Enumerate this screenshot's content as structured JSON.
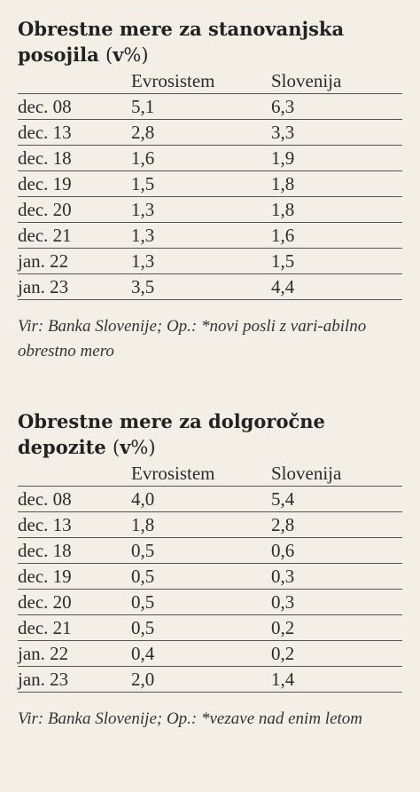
{
  "table1": {
    "title": "Obrestne mere za stanovanjska posojila",
    "unit_v": "v",
    "unit_pct": "%",
    "columns": [
      "",
      "Evrosistem",
      "Slovenija"
    ],
    "rows": [
      {
        "date": "dec. 08",
        "evro": "5,1",
        "slo": "6,3"
      },
      {
        "date": "dec. 13",
        "evro": "2,8",
        "slo": "3,3"
      },
      {
        "date": "dec. 18",
        "evro": "1,6",
        "slo": "1,9"
      },
      {
        "date": "dec. 19",
        "evro": "1,5",
        "slo": "1,8"
      },
      {
        "date": "dec. 20",
        "evro": "1,3",
        "slo": "1,8"
      },
      {
        "date": "dec. 21",
        "evro": "1,3",
        "slo": "1,6"
      },
      {
        "date": "jan. 22",
        "evro": "1,3",
        "slo": "1,5"
      },
      {
        "date": "jan. 23",
        "evro": "3,5",
        "slo": "4,4"
      }
    ],
    "note": "Vir: Banka Slovenije; Op.: *novi posli z vari-abilno obrestno mero"
  },
  "table2": {
    "title": "Obrestne mere za dolgoročne depozite",
    "unit_v": "v",
    "unit_pct": "%",
    "columns": [
      "",
      "Evrosistem",
      "Slovenija"
    ],
    "rows": [
      {
        "date": "dec. 08",
        "evro": "4,0",
        "slo": "5,4"
      },
      {
        "date": "dec. 13",
        "evro": "1,8",
        "slo": "2,8"
      },
      {
        "date": "dec. 18",
        "evro": "0,5",
        "slo": "0,6"
      },
      {
        "date": "dec. 19",
        "evro": "0,5",
        "slo": "0,3"
      },
      {
        "date": "dec. 20",
        "evro": "0,5",
        "slo": "0,3"
      },
      {
        "date": "dec. 21",
        "evro": "0,5",
        "slo": "0,2"
      },
      {
        "date": "jan. 22",
        "evro": "0,4",
        "slo": "0,2"
      },
      {
        "date": "jan. 23",
        "evro": "2,0",
        "slo": "1,4"
      }
    ],
    "note": "Vir: Banka Slovenije; Op.: *vezave nad enim letom"
  }
}
